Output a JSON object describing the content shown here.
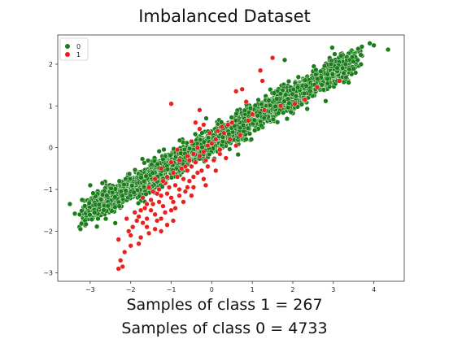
{
  "chart_data": {
    "type": "scatter",
    "title": "Imbalanced Dataset",
    "xlabel": "",
    "ylabel": "",
    "xlim": [
      -3.8,
      4.75
    ],
    "ylim": [
      -3.2,
      2.7
    ],
    "x_ticks": [
      -3,
      -2,
      -1,
      0,
      1,
      2,
      3,
      4
    ],
    "y_ticks": [
      -3,
      -2,
      -1,
      0,
      1,
      2
    ],
    "legend_placement": "top-left",
    "grid": false,
    "series": [
      {
        "name": "0",
        "color": "#1a7d1a",
        "count": 4733,
        "distribution": {
          "x_range": [
            -3.5,
            3.6
          ],
          "slope": 0.55,
          "intercept": 0.15,
          "spread": 0.16
        },
        "sample_points": [
          [
            -3.5,
            -1.35
          ],
          [
            -3.2,
            -1.25
          ],
          [
            -3.0,
            -0.9
          ],
          [
            -2.7,
            -0.85
          ],
          [
            3.6,
            2.1
          ],
          [
            3.3,
            2.0
          ],
          [
            3.9,
            2.5
          ],
          [
            4.0,
            2.45
          ],
          [
            4.35,
            2.35
          ],
          [
            1.8,
            2.1
          ]
        ]
      },
      {
        "name": "1",
        "color": "#e8211f",
        "count": 267,
        "points": [
          [
            -2.3,
            -2.9
          ],
          [
            -2.2,
            -2.85
          ],
          [
            -2.25,
            -2.7
          ],
          [
            -2.15,
            -2.5
          ],
          [
            -2.3,
            -2.2
          ],
          [
            -2.0,
            -2.1
          ],
          [
            -1.8,
            -2.3
          ],
          [
            -1.95,
            -1.9
          ],
          [
            -1.7,
            -1.8
          ],
          [
            -1.8,
            -1.65
          ],
          [
            -1.6,
            -1.7
          ],
          [
            -1.5,
            -1.5
          ],
          [
            -1.75,
            -1.5
          ],
          [
            -1.4,
            -1.6
          ],
          [
            -1.3,
            -1.3
          ],
          [
            -1.45,
            -1.35
          ],
          [
            -1.2,
            -1.4
          ],
          [
            -1.1,
            -1.1
          ],
          [
            -1.25,
            -1.15
          ],
          [
            -1.0,
            -1.2
          ],
          [
            -0.9,
            -0.9
          ],
          [
            -1.05,
            -0.95
          ],
          [
            -0.8,
            -1.0
          ],
          [
            -0.85,
            -0.7
          ],
          [
            -0.7,
            -0.75
          ],
          [
            -0.6,
            -0.55
          ],
          [
            -0.75,
            -0.5
          ],
          [
            -0.5,
            -0.45
          ],
          [
            -0.55,
            -0.3
          ],
          [
            -0.4,
            -0.35
          ],
          [
            -0.3,
            -0.2
          ],
          [
            -0.45,
            -0.15
          ],
          [
            -0.2,
            -0.1
          ],
          [
            -0.1,
            0.05
          ],
          [
            0.0,
            0.1
          ],
          [
            0.1,
            0.2
          ],
          [
            -1.6,
            -1.9
          ],
          [
            -1.35,
            -1.75
          ],
          [
            -1.15,
            -1.55
          ],
          [
            -0.95,
            -1.3
          ],
          [
            -0.65,
            -1.05
          ],
          [
            -1.5,
            -1.25
          ],
          [
            -1.3,
            -1.0
          ],
          [
            -1.15,
            -0.85
          ],
          [
            -0.95,
            -0.6
          ],
          [
            -0.8,
            -0.3
          ],
          [
            -0.6,
            -0.2
          ],
          [
            -0.35,
            0.0
          ],
          [
            -2.05,
            -2.0
          ],
          [
            -1.9,
            -1.55
          ],
          [
            -1.65,
            -1.45
          ],
          [
            -1.55,
            -2.05
          ],
          [
            -1.4,
            -1.95
          ],
          [
            -1.25,
            -1.7
          ],
          [
            -1.0,
            -1.5
          ],
          [
            -0.9,
            -1.45
          ],
          [
            -0.7,
            -1.3
          ],
          [
            -0.55,
            -0.8
          ],
          [
            -0.45,
            -0.7
          ],
          [
            -0.25,
            -0.55
          ],
          [
            -0.15,
            -0.3
          ],
          [
            0.2,
            -0.15
          ],
          [
            0.05,
            -0.3
          ],
          [
            -0.1,
            -0.45
          ],
          [
            -0.35,
            -0.6
          ],
          [
            -1.1,
            -0.7
          ],
          [
            -1.2,
            -0.8
          ],
          [
            -1.35,
            -1.1
          ],
          [
            -1.45,
            -1.05
          ],
          [
            -1.6,
            -1.35
          ],
          [
            -1.7,
            -1.2
          ],
          [
            -2.1,
            -1.7
          ],
          [
            -1.85,
            -1.75
          ],
          [
            -0.6,
            -0.95
          ],
          [
            -0.8,
            -1.15
          ],
          [
            0.3,
            0.35
          ],
          [
            0.4,
            0.55
          ],
          [
            0.25,
            0.5
          ],
          [
            0.5,
            0.6
          ],
          [
            -0.05,
            0.35
          ],
          [
            0.15,
            0.4
          ],
          [
            0.45,
            0.2
          ],
          [
            1.2,
            1.85
          ],
          [
            1.25,
            1.6
          ],
          [
            1.5,
            2.15
          ],
          [
            0.75,
            1.4
          ],
          [
            0.85,
            1.1
          ],
          [
            0.6,
            1.35
          ],
          [
            -1.0,
            1.05
          ],
          [
            -0.3,
            0.9
          ],
          [
            1.0,
            0.8
          ],
          [
            1.3,
            0.9
          ],
          [
            1.7,
            1.0
          ],
          [
            2.05,
            1.05
          ],
          [
            2.3,
            1.15
          ],
          [
            2.6,
            1.45
          ],
          [
            3.15,
            1.6
          ],
          [
            0.9,
            0.65
          ],
          [
            -0.4,
            0.6
          ],
          [
            -0.2,
            0.55
          ],
          [
            0.2,
            -0.05
          ],
          [
            0.35,
            -0.25
          ],
          [
            -0.5,
            0.15
          ],
          [
            -0.85,
            -0.05
          ],
          [
            -1.0,
            -0.35
          ],
          [
            -1.25,
            -0.5
          ],
          [
            -1.4,
            -0.75
          ],
          [
            -1.55,
            -0.95
          ],
          [
            -0.3,
            0.45
          ],
          [
            -0.65,
            -0.45
          ],
          [
            -0.45,
            -0.95
          ],
          [
            -0.2,
            -0.75
          ],
          [
            0.1,
            -0.55
          ],
          [
            -0.95,
            -1.75
          ],
          [
            -1.1,
            -1.85
          ],
          [
            -1.25,
            -2.0
          ],
          [
            -1.75,
            -2.15
          ],
          [
            -2.0,
            -2.35
          ],
          [
            -0.5,
            -1.15
          ],
          [
            -0.15,
            -0.9
          ],
          [
            0.6,
            0.05
          ],
          [
            0.7,
            0.3
          ]
        ]
      }
    ]
  },
  "captions": {
    "line1": "Samples of class 1 = 267",
    "line2": "Samples of class 0 = 4733"
  }
}
